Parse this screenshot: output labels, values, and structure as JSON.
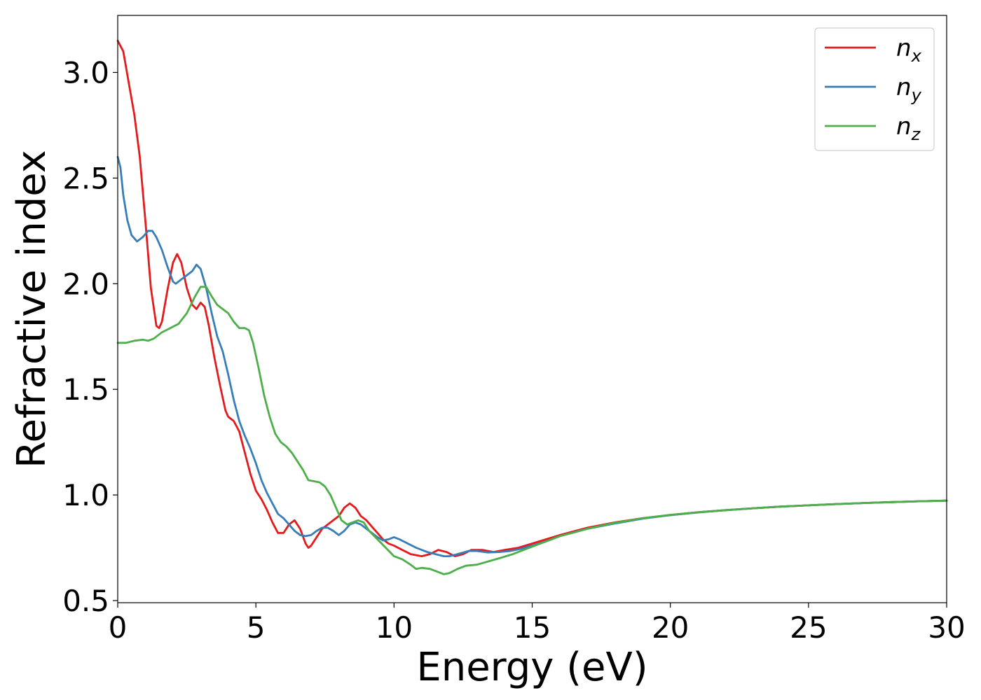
{
  "chart_data": {
    "type": "line",
    "title": "",
    "xlabel": "Energy (eV)",
    "ylabel": "Refractive index",
    "xlim": [
      0,
      30
    ],
    "ylim": [
      0.49,
      3.27
    ],
    "xticks": [
      "0",
      "5",
      "10",
      "15",
      "20",
      "25",
      "30"
    ],
    "xtick_values": [
      0,
      5,
      10,
      15,
      20,
      25,
      30
    ],
    "yticks": [
      "0.5",
      "1.0",
      "1.5",
      "2.0",
      "2.5",
      "3.0"
    ],
    "ytick_values": [
      0.5,
      1.0,
      1.5,
      2.0,
      2.5,
      3.0
    ],
    "grid": false,
    "legend_position": "top-right",
    "series": [
      {
        "name": "n",
        "subscript": "x",
        "color": "#e41a1c",
        "points": [
          [
            0,
            3.15
          ],
          [
            0.2,
            3.1
          ],
          [
            0.4,
            2.95
          ],
          [
            0.6,
            2.8
          ],
          [
            0.8,
            2.6
          ],
          [
            1.0,
            2.3
          ],
          [
            1.2,
            1.98
          ],
          [
            1.4,
            1.8
          ],
          [
            1.5,
            1.79
          ],
          [
            1.6,
            1.82
          ],
          [
            1.8,
            1.97
          ],
          [
            2.0,
            2.1
          ],
          [
            2.15,
            2.14
          ],
          [
            2.3,
            2.1
          ],
          [
            2.5,
            1.98
          ],
          [
            2.7,
            1.9
          ],
          [
            2.85,
            1.88
          ],
          [
            3.0,
            1.91
          ],
          [
            3.15,
            1.89
          ],
          [
            3.3,
            1.8
          ],
          [
            3.5,
            1.65
          ],
          [
            3.7,
            1.52
          ],
          [
            3.9,
            1.4
          ],
          [
            4.0,
            1.37
          ],
          [
            4.2,
            1.35
          ],
          [
            4.4,
            1.3
          ],
          [
            4.6,
            1.2
          ],
          [
            4.8,
            1.1
          ],
          [
            5.0,
            1.02
          ],
          [
            5.2,
            0.98
          ],
          [
            5.4,
            0.93
          ],
          [
            5.6,
            0.87
          ],
          [
            5.8,
            0.82
          ],
          [
            6.0,
            0.82
          ],
          [
            6.2,
            0.86
          ],
          [
            6.4,
            0.88
          ],
          [
            6.6,
            0.84
          ],
          [
            6.8,
            0.77
          ],
          [
            6.9,
            0.75
          ],
          [
            7.0,
            0.76
          ],
          [
            7.2,
            0.8
          ],
          [
            7.4,
            0.84
          ],
          [
            7.6,
            0.86
          ],
          [
            7.8,
            0.88
          ],
          [
            8.0,
            0.9
          ],
          [
            8.2,
            0.94
          ],
          [
            8.4,
            0.96
          ],
          [
            8.6,
            0.94
          ],
          [
            8.8,
            0.9
          ],
          [
            9.0,
            0.88
          ],
          [
            9.2,
            0.85
          ],
          [
            9.4,
            0.82
          ],
          [
            9.6,
            0.79
          ],
          [
            9.8,
            0.77
          ],
          [
            10.0,
            0.76
          ],
          [
            10.3,
            0.74
          ],
          [
            10.6,
            0.72
          ],
          [
            11.0,
            0.71
          ],
          [
            11.3,
            0.72
          ],
          [
            11.6,
            0.74
          ],
          [
            11.9,
            0.73
          ],
          [
            12.2,
            0.71
          ],
          [
            12.5,
            0.72
          ],
          [
            12.8,
            0.74
          ],
          [
            13.2,
            0.74
          ],
          [
            13.6,
            0.73
          ],
          [
            14.0,
            0.74
          ],
          [
            14.5,
            0.75
          ],
          [
            15.0,
            0.77
          ],
          [
            15.5,
            0.79
          ],
          [
            16,
            0.81
          ],
          [
            17,
            0.845
          ],
          [
            18,
            0.87
          ],
          [
            19,
            0.89
          ],
          [
            20,
            0.905
          ],
          [
            21,
            0.918
          ],
          [
            22,
            0.928
          ],
          [
            23,
            0.937
          ],
          [
            24,
            0.945
          ],
          [
            25,
            0.951
          ],
          [
            26,
            0.957
          ],
          [
            27,
            0.962
          ],
          [
            28,
            0.966
          ],
          [
            29,
            0.97
          ],
          [
            30,
            0.973
          ]
        ]
      },
      {
        "name": "n",
        "subscript": "y",
        "color": "#377eb8",
        "points": [
          [
            0,
            2.6
          ],
          [
            0.1,
            2.55
          ],
          [
            0.2,
            2.42
          ],
          [
            0.35,
            2.3
          ],
          [
            0.5,
            2.23
          ],
          [
            0.7,
            2.2
          ],
          [
            0.9,
            2.22
          ],
          [
            1.1,
            2.25
          ],
          [
            1.25,
            2.25
          ],
          [
            1.4,
            2.22
          ],
          [
            1.6,
            2.16
          ],
          [
            1.8,
            2.08
          ],
          [
            2.0,
            2.01
          ],
          [
            2.1,
            2.0
          ],
          [
            2.3,
            2.02
          ],
          [
            2.5,
            2.04
          ],
          [
            2.7,
            2.06
          ],
          [
            2.85,
            2.09
          ],
          [
            3.0,
            2.07
          ],
          [
            3.2,
            1.98
          ],
          [
            3.4,
            1.86
          ],
          [
            3.6,
            1.75
          ],
          [
            3.8,
            1.68
          ],
          [
            4.0,
            1.57
          ],
          [
            4.2,
            1.45
          ],
          [
            4.4,
            1.35
          ],
          [
            4.6,
            1.28
          ],
          [
            4.8,
            1.22
          ],
          [
            5.0,
            1.15
          ],
          [
            5.2,
            1.07
          ],
          [
            5.4,
            1.01
          ],
          [
            5.6,
            0.96
          ],
          [
            5.8,
            0.91
          ],
          [
            6.0,
            0.89
          ],
          [
            6.2,
            0.86
          ],
          [
            6.4,
            0.83
          ],
          [
            6.6,
            0.81
          ],
          [
            6.8,
            0.805
          ],
          [
            7.0,
            0.81
          ],
          [
            7.2,
            0.83
          ],
          [
            7.4,
            0.845
          ],
          [
            7.6,
            0.845
          ],
          [
            7.8,
            0.83
          ],
          [
            8.0,
            0.81
          ],
          [
            8.2,
            0.83
          ],
          [
            8.4,
            0.86
          ],
          [
            8.6,
            0.87
          ],
          [
            8.8,
            0.86
          ],
          [
            9.0,
            0.84
          ],
          [
            9.2,
            0.82
          ],
          [
            9.4,
            0.8
          ],
          [
            9.6,
            0.785
          ],
          [
            9.8,
            0.79
          ],
          [
            10.0,
            0.8
          ],
          [
            10.2,
            0.79
          ],
          [
            10.5,
            0.77
          ],
          [
            10.8,
            0.75
          ],
          [
            11.2,
            0.73
          ],
          [
            11.5,
            0.72
          ],
          [
            11.8,
            0.71
          ],
          [
            12.0,
            0.71
          ],
          [
            12.3,
            0.72
          ],
          [
            12.7,
            0.735
          ],
          [
            13.0,
            0.735
          ],
          [
            13.4,
            0.728
          ],
          [
            13.8,
            0.73
          ],
          [
            14.2,
            0.735
          ],
          [
            14.6,
            0.745
          ],
          [
            15.0,
            0.76
          ],
          [
            15.5,
            0.78
          ],
          [
            16,
            0.805
          ],
          [
            17,
            0.84
          ],
          [
            18,
            0.865
          ],
          [
            19,
            0.888
          ],
          [
            20,
            0.905
          ],
          [
            21,
            0.917
          ],
          [
            22,
            0.928
          ],
          [
            23,
            0.937
          ],
          [
            24,
            0.945
          ],
          [
            25,
            0.951
          ],
          [
            26,
            0.957
          ],
          [
            27,
            0.962
          ],
          [
            28,
            0.966
          ],
          [
            29,
            0.97
          ],
          [
            30,
            0.973
          ]
        ]
      },
      {
        "name": "n",
        "subscript": "z",
        "color": "#4daf4a",
        "points": [
          [
            0,
            1.72
          ],
          [
            0.3,
            1.72
          ],
          [
            0.6,
            1.73
          ],
          [
            0.9,
            1.735
          ],
          [
            1.1,
            1.73
          ],
          [
            1.3,
            1.74
          ],
          [
            1.6,
            1.77
          ],
          [
            1.9,
            1.79
          ],
          [
            2.2,
            1.81
          ],
          [
            2.5,
            1.86
          ],
          [
            2.8,
            1.94
          ],
          [
            3.0,
            1.985
          ],
          [
            3.2,
            1.985
          ],
          [
            3.4,
            1.94
          ],
          [
            3.6,
            1.9
          ],
          [
            3.8,
            1.88
          ],
          [
            4.0,
            1.86
          ],
          [
            4.2,
            1.82
          ],
          [
            4.4,
            1.79
          ],
          [
            4.6,
            1.79
          ],
          [
            4.75,
            1.78
          ],
          [
            4.9,
            1.72
          ],
          [
            5.1,
            1.6
          ],
          [
            5.3,
            1.47
          ],
          [
            5.5,
            1.37
          ],
          [
            5.7,
            1.29
          ],
          [
            5.9,
            1.25
          ],
          [
            6.1,
            1.23
          ],
          [
            6.3,
            1.2
          ],
          [
            6.5,
            1.16
          ],
          [
            6.7,
            1.12
          ],
          [
            6.9,
            1.07
          ],
          [
            7.1,
            1.065
          ],
          [
            7.3,
            1.06
          ],
          [
            7.5,
            1.04
          ],
          [
            7.7,
            1.0
          ],
          [
            7.9,
            0.94
          ],
          [
            8.1,
            0.88
          ],
          [
            8.3,
            0.86
          ],
          [
            8.5,
            0.87
          ],
          [
            8.7,
            0.88
          ],
          [
            8.9,
            0.87
          ],
          [
            9.1,
            0.83
          ],
          [
            9.4,
            0.79
          ],
          [
            9.7,
            0.75
          ],
          [
            10.0,
            0.71
          ],
          [
            10.3,
            0.695
          ],
          [
            10.6,
            0.67
          ],
          [
            10.8,
            0.65
          ],
          [
            11.0,
            0.655
          ],
          [
            11.3,
            0.65
          ],
          [
            11.6,
            0.635
          ],
          [
            11.8,
            0.625
          ],
          [
            12.0,
            0.63
          ],
          [
            12.3,
            0.65
          ],
          [
            12.6,
            0.665
          ],
          [
            13.0,
            0.67
          ],
          [
            13.4,
            0.685
          ],
          [
            13.8,
            0.7
          ],
          [
            14.3,
            0.72
          ],
          [
            14.8,
            0.745
          ],
          [
            15.3,
            0.77
          ],
          [
            16,
            0.805
          ],
          [
            17,
            0.84
          ],
          [
            18,
            0.868
          ],
          [
            19,
            0.89
          ],
          [
            20,
            0.906
          ],
          [
            21,
            0.918
          ],
          [
            22,
            0.928
          ],
          [
            23,
            0.937
          ],
          [
            24,
            0.945
          ],
          [
            25,
            0.951
          ],
          [
            26,
            0.957
          ],
          [
            27,
            0.962
          ],
          [
            28,
            0.966
          ],
          [
            29,
            0.97
          ],
          [
            30,
            0.973
          ]
        ]
      }
    ]
  }
}
